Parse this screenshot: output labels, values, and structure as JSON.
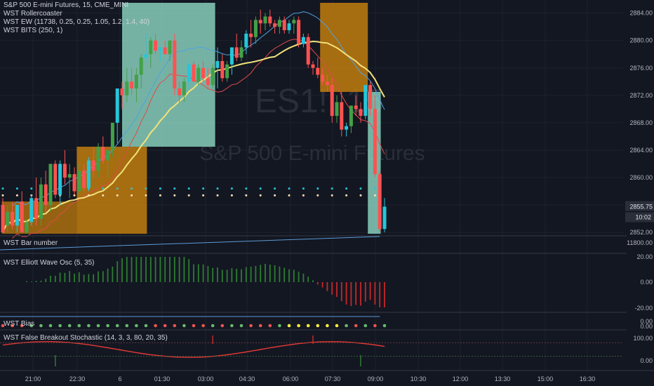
{
  "header": {
    "symbol_line": "S&P 500 E-mini Futures, 15, CME_MINI",
    "indicators": [
      "WST Rollercoaster",
      "WST EW (11738, 0.25, 0.25, 1.05, 1.2, 1.4, 40)",
      "WST BITS (250, 1)"
    ]
  },
  "watermark": {
    "symbol": "ES1!, 15",
    "name": "S&P 500 E-mini Futures"
  },
  "panes": {
    "bar_number": {
      "title": "WST Bar number",
      "tick": "11800.00"
    },
    "elliott": {
      "title": "WST Elliott Wave Osc (5, 35)",
      "ticks": [
        "20.00",
        "0.00",
        "-20.00"
      ]
    },
    "bias": {
      "title": "WST Bias",
      "ticks": [
        "0.00",
        "0.00"
      ]
    },
    "stoch": {
      "title": "WST False Breakout Stochastic (14, 3, 3, 80, 20, 35)",
      "ticks": [
        "100.00",
        "0.00"
      ]
    }
  },
  "colors": {
    "up": "#26a69a",
    "down": "#ef5350",
    "green": "#4caf50",
    "red": "#f44336",
    "cyan": "#26c6da",
    "yellow": "#ffeb3b",
    "orange": "#c27c0e",
    "mint": "#8ed9c5"
  },
  "chart_data": {
    "type": "candlestick",
    "price_ticks": [
      "2884.00",
      "2880.00",
      "2876.00",
      "2872.00",
      "2868.00",
      "2864.00",
      "2860.00",
      "2856.00",
      "2852.00"
    ],
    "y_range": [
      2851.5,
      2885.5
    ],
    "last_price": "2855.75",
    "countdown": "10:02",
    "time_labels": [
      "21:00",
      "22:30",
      "6",
      "01:30",
      "03:00",
      "04:30",
      "06:00",
      "07:30",
      "09:00",
      "10:30",
      "12:00",
      "13:30",
      "15:00",
      "16:30"
    ],
    "candles": [
      {
        "o": 2856,
        "h": 2857,
        "l": 2852,
        "c": 2852
      },
      {
        "o": 2853,
        "h": 2856,
        "l": 2852,
        "c": 2855
      },
      {
        "o": 2855,
        "h": 2856.5,
        "l": 2852.5,
        "c": 2853
      },
      {
        "o": 2853,
        "h": 2856,
        "l": 2852,
        "c": 2856
      },
      {
        "o": 2856.5,
        "h": 2858,
        "l": 2852,
        "c": 2852
      },
      {
        "o": 2852,
        "h": 2854,
        "l": 2851.8,
        "c": 2853.5
      },
      {
        "o": 2853.5,
        "h": 2857.5,
        "l": 2853,
        "c": 2857
      },
      {
        "o": 2857,
        "h": 2860,
        "l": 2853,
        "c": 2854
      },
      {
        "o": 2854,
        "h": 2860,
        "l": 2853,
        "c": 2859
      },
      {
        "o": 2859,
        "h": 2861,
        "l": 2855,
        "c": 2856
      },
      {
        "o": 2856,
        "h": 2862,
        "l": 2855,
        "c": 2862
      },
      {
        "o": 2862,
        "h": 2862.5,
        "l": 2857,
        "c": 2857.5
      },
      {
        "o": 2857.5,
        "h": 2862.5,
        "l": 2856,
        "c": 2862
      },
      {
        "o": 2862,
        "h": 2864,
        "l": 2859,
        "c": 2860
      },
      {
        "o": 2860,
        "h": 2862,
        "l": 2857,
        "c": 2860.5
      },
      {
        "o": 2860.5,
        "h": 2861.5,
        "l": 2857.5,
        "c": 2858
      },
      {
        "o": 2858,
        "h": 2862,
        "l": 2857.5,
        "c": 2861
      },
      {
        "o": 2861,
        "h": 2862,
        "l": 2858,
        "c": 2858.5
      },
      {
        "o": 2858.5,
        "h": 2863,
        "l": 2858,
        "c": 2862.5
      },
      {
        "o": 2862.5,
        "h": 2864.5,
        "l": 2860,
        "c": 2861
      },
      {
        "o": 2861,
        "h": 2865,
        "l": 2860,
        "c": 2864.5
      },
      {
        "o": 2864.5,
        "h": 2866,
        "l": 2862,
        "c": 2862.5
      },
      {
        "o": 2862.5,
        "h": 2864,
        "l": 2860,
        "c": 2864
      },
      {
        "o": 2864,
        "h": 2868,
        "l": 2863,
        "c": 2868
      },
      {
        "o": 2868,
        "h": 2873,
        "l": 2865,
        "c": 2873
      },
      {
        "o": 2873,
        "h": 2874,
        "l": 2870,
        "c": 2872
      },
      {
        "o": 2872,
        "h": 2876,
        "l": 2871,
        "c": 2874
      },
      {
        "o": 2874,
        "h": 2876,
        "l": 2872,
        "c": 2873
      },
      {
        "o": 2873,
        "h": 2876,
        "l": 2871,
        "c": 2875
      },
      {
        "o": 2875,
        "h": 2878,
        "l": 2873,
        "c": 2877.5
      },
      {
        "o": 2877.5,
        "h": 2881,
        "l": 2877,
        "c": 2878
      },
      {
        "o": 2878,
        "h": 2880.5,
        "l": 2876,
        "c": 2880
      },
      {
        "o": 2880,
        "h": 2881,
        "l": 2878,
        "c": 2878.5
      },
      {
        "o": 2878.5,
        "h": 2879,
        "l": 2877,
        "c": 2879
      },
      {
        "o": 2879,
        "h": 2880,
        "l": 2878,
        "c": 2878
      },
      {
        "o": 2878,
        "h": 2880,
        "l": 2877,
        "c": 2880
      },
      {
        "o": 2880,
        "h": 2881,
        "l": 2872,
        "c": 2873
      },
      {
        "o": 2873,
        "h": 2874,
        "l": 2871,
        "c": 2872
      },
      {
        "o": 2872,
        "h": 2874.5,
        "l": 2871,
        "c": 2874
      },
      {
        "o": 2874,
        "h": 2877,
        "l": 2873,
        "c": 2876.5
      },
      {
        "o": 2876.5,
        "h": 2877,
        "l": 2874,
        "c": 2874
      },
      {
        "o": 2874,
        "h": 2876.5,
        "l": 2873.5,
        "c": 2876
      },
      {
        "o": 2876,
        "h": 2877,
        "l": 2874,
        "c": 2874.5
      },
      {
        "o": 2874.5,
        "h": 2876,
        "l": 2873,
        "c": 2873.5
      },
      {
        "o": 2873.5,
        "h": 2876.5,
        "l": 2873,
        "c": 2876
      },
      {
        "o": 2876,
        "h": 2879,
        "l": 2873,
        "c": 2877
      },
      {
        "o": 2877,
        "h": 2878,
        "l": 2874,
        "c": 2874.5
      },
      {
        "o": 2874.5,
        "h": 2877,
        "l": 2874,
        "c": 2876.5
      },
      {
        "o": 2876.5,
        "h": 2879,
        "l": 2875,
        "c": 2879
      },
      {
        "o": 2879,
        "h": 2881,
        "l": 2877,
        "c": 2877.5
      },
      {
        "o": 2877.5,
        "h": 2880,
        "l": 2877,
        "c": 2879
      },
      {
        "o": 2879,
        "h": 2881.5,
        "l": 2878,
        "c": 2881
      },
      {
        "o": 2881,
        "h": 2883,
        "l": 2879,
        "c": 2880.5
      },
      {
        "o": 2880.5,
        "h": 2883.5,
        "l": 2879.5,
        "c": 2883
      },
      {
        "o": 2883,
        "h": 2884.5,
        "l": 2881,
        "c": 2882.5
      },
      {
        "o": 2882.5,
        "h": 2884,
        "l": 2881.5,
        "c": 2883.5
      },
      {
        "o": 2883.5,
        "h": 2884.5,
        "l": 2882,
        "c": 2882.5
      },
      {
        "o": 2882.5,
        "h": 2883,
        "l": 2881,
        "c": 2882
      },
      {
        "o": 2882,
        "h": 2883.5,
        "l": 2881,
        "c": 2883
      },
      {
        "o": 2883,
        "h": 2883.5,
        "l": 2881,
        "c": 2881.5
      },
      {
        "o": 2881.5,
        "h": 2883,
        "l": 2881,
        "c": 2882.5
      },
      {
        "o": 2882.5,
        "h": 2883.5,
        "l": 2881,
        "c": 2883
      },
      {
        "o": 2883,
        "h": 2883.5,
        "l": 2879,
        "c": 2879.5
      },
      {
        "o": 2879.5,
        "h": 2881,
        "l": 2879,
        "c": 2880.5
      },
      {
        "o": 2880.5,
        "h": 2881,
        "l": 2876,
        "c": 2876.5
      },
      {
        "o": 2876.5,
        "h": 2877,
        "l": 2875,
        "c": 2876
      },
      {
        "o": 2876,
        "h": 2877.5,
        "l": 2874.5,
        "c": 2875
      },
      {
        "o": 2875,
        "h": 2876,
        "l": 2873.5,
        "c": 2874
      },
      {
        "o": 2874,
        "h": 2875,
        "l": 2872.5,
        "c": 2873.5
      },
      {
        "o": 2873.5,
        "h": 2874.5,
        "l": 2868,
        "c": 2869
      },
      {
        "o": 2869,
        "h": 2872,
        "l": 2868,
        "c": 2871
      },
      {
        "o": 2871,
        "h": 2872.5,
        "l": 2866,
        "c": 2867
      },
      {
        "o": 2867,
        "h": 2868,
        "l": 2866,
        "c": 2867.5
      },
      {
        "o": 2867.5,
        "h": 2870.5,
        "l": 2866.5,
        "c": 2870.5
      },
      {
        "o": 2870.5,
        "h": 2872,
        "l": 2869,
        "c": 2870
      },
      {
        "o": 2870,
        "h": 2871,
        "l": 2868,
        "c": 2869
      },
      {
        "o": 2869,
        "h": 2873.5,
        "l": 2868.5,
        "c": 2873.5
      },
      {
        "o": 2873.5,
        "h": 2874,
        "l": 2869,
        "c": 2870
      },
      {
        "o": 2870,
        "h": 2872,
        "l": 2860,
        "c": 2860.5
      },
      {
        "o": 2860.5,
        "h": 2861,
        "l": 2852,
        "c": 2852.5
      },
      {
        "o": 2852.5,
        "h": 2857,
        "l": 2852,
        "c": 2855.75
      }
    ]
  }
}
